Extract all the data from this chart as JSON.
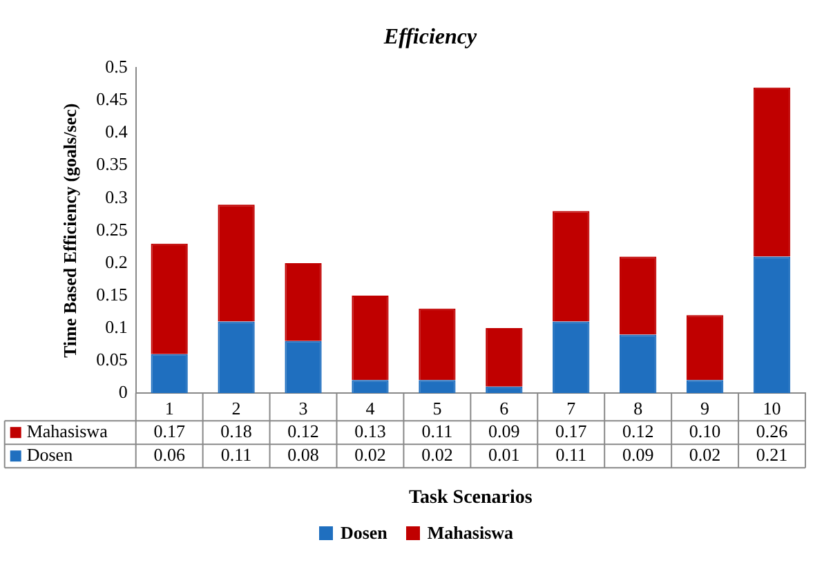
{
  "chart_data": {
    "type": "bar",
    "title": "Efficiency",
    "xlabel": "Task Scenarios",
    "ylabel": "Time Based Efficiency (goals/sec)",
    "categories": [
      "1",
      "2",
      "3",
      "4",
      "5",
      "6",
      "7",
      "8",
      "9",
      "10"
    ],
    "stacked": true,
    "ylim": [
      0,
      0.5
    ],
    "yticks": [
      0,
      0.05,
      0.1,
      0.15,
      0.2,
      0.25,
      0.3,
      0.35,
      0.4,
      0.45,
      0.5
    ],
    "grid": false,
    "legend": "bottom",
    "series": [
      {
        "name": "Dosen",
        "color": "#1f6fbf",
        "values": [
          0.06,
          0.11,
          0.08,
          0.02,
          0.02,
          0.01,
          0.11,
          0.09,
          0.02,
          0.21
        ],
        "value_labels": [
          "0.06",
          "0.11",
          "0.08",
          "0.02",
          "0.02",
          "0.01",
          "0.11",
          "0.09",
          "0.02",
          "0.21"
        ]
      },
      {
        "name": "Mahasiswa",
        "color": "#c00000",
        "values": [
          0.17,
          0.18,
          0.12,
          0.13,
          0.11,
          0.09,
          0.17,
          0.12,
          0.1,
          0.26
        ],
        "value_labels": [
          "0.17",
          "0.18",
          "0.12",
          "0.13",
          "0.11",
          "0.09",
          "0.17",
          "0.12",
          "0.10",
          "0.26"
        ]
      }
    ]
  }
}
